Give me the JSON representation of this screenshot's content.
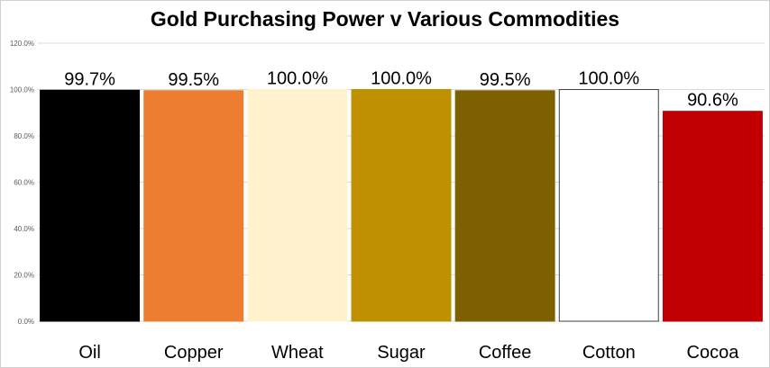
{
  "chart_data": {
    "type": "bar",
    "title": "Gold Purchasing Power v Various Commodities",
    "xlabel": "",
    "ylabel": "",
    "categories": [
      "Oil",
      "Copper",
      "Wheat",
      "Sugar",
      "Coffee",
      "Cotton",
      "Cocoa"
    ],
    "values": [
      99.7,
      99.5,
      100.0,
      100.0,
      99.5,
      100.0,
      90.6
    ],
    "data_labels": [
      "99.7%",
      "99.5%",
      "100.0%",
      "100.0%",
      "99.5%",
      "100.0%",
      "90.6%"
    ],
    "bar_colors": [
      "#000000",
      "#ED7D31",
      "#FFF2CC",
      "#BF9000",
      "#7F6000",
      "#FFFFFF",
      "#C00000"
    ],
    "bar_outline_colors": [
      "#000000",
      "#ED7D31",
      "#FFF2CC",
      "#BF9000",
      "#7F6000",
      "#404040",
      "#C00000"
    ],
    "ylim": [
      0,
      120
    ],
    "yticks": [
      0,
      20,
      40,
      60,
      80,
      100,
      120
    ],
    "ytick_labels": [
      "0.0%",
      "20.0%",
      "40.0%",
      "60.0%",
      "80.0%",
      "100.0%",
      "120.0%"
    ],
    "grid": true,
    "legend": "none"
  }
}
